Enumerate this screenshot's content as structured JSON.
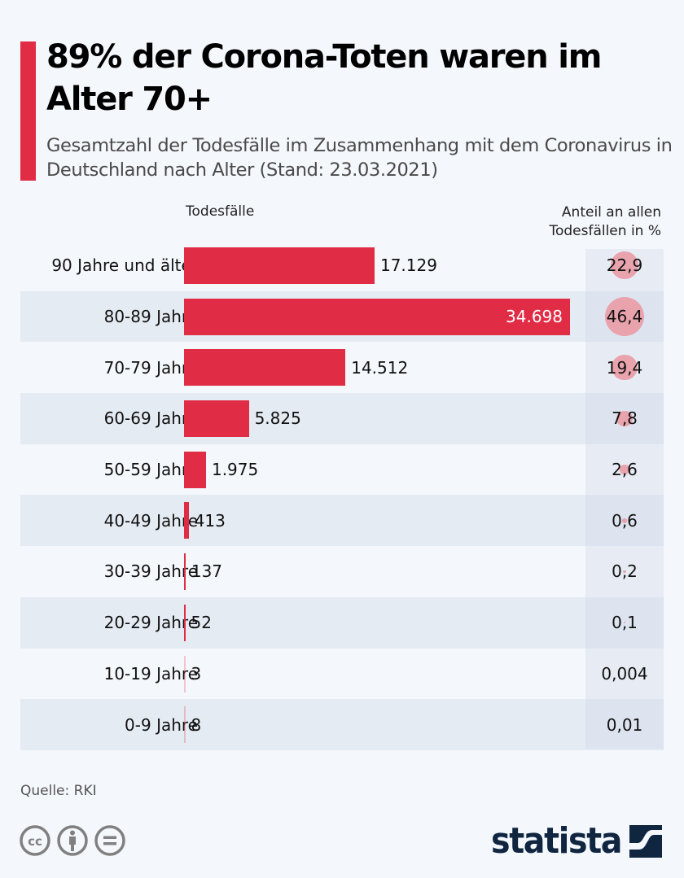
{
  "title": "89% der Corona-Toten waren im Alter 70+",
  "subtitle": "Gesamtzahl der Todesfälle im Zusammenhang mit dem Coronavirus in Deutschland nach Alter (Stand: 23.03.2021)",
  "colors": {
    "accent": "#e02c45",
    "circle": "#e8a3ad",
    "logo": "#0f2540"
  },
  "chart_data": {
    "type": "bar",
    "orientation": "horizontal",
    "title": "89% der Corona-Toten waren im Alter 70+",
    "subtitle": "Gesamtzahl der Todesfälle im Zusammenhang mit dem Coronavirus in Deutschland nach Alter (Stand: 23.03.2021)",
    "xlabel": "Todesfälle",
    "secondary_label": "Anteil an allen Todesfällen in %",
    "categories": [
      "90 Jahre und älter",
      "80-89 Jahre",
      "70-79 Jahre",
      "60-69 Jahre",
      "50-59 Jahre",
      "40-49 Jahre",
      "30-39 Jahre",
      "20-29 Jahre",
      "10-19 Jahre",
      "0-9 Jahre"
    ],
    "values": [
      17129,
      34698,
      14512,
      5825,
      1975,
      413,
      137,
      52,
      3,
      8
    ],
    "value_labels": [
      "17.129",
      "34.698",
      "14.512",
      "5.825",
      "1.975",
      "413",
      "137",
      "52",
      "3",
      "8"
    ],
    "share_percent": [
      22.9,
      46.4,
      19.4,
      7.8,
      2.6,
      0.6,
      0.2,
      0.1,
      0.004,
      0.01
    ],
    "share_labels": [
      "22,9",
      "46,4",
      "19,4",
      "7,8",
      "2,6",
      "0,6",
      "0,2",
      "0,1",
      "0,004",
      "0,01"
    ],
    "xlim": [
      0,
      34698
    ],
    "grid": false,
    "legend": "none"
  },
  "footer": {
    "source": "Quelle: RKI",
    "license_icons": [
      "cc-icon",
      "attribution-icon",
      "no-derivatives-icon"
    ],
    "brand": "statista"
  }
}
